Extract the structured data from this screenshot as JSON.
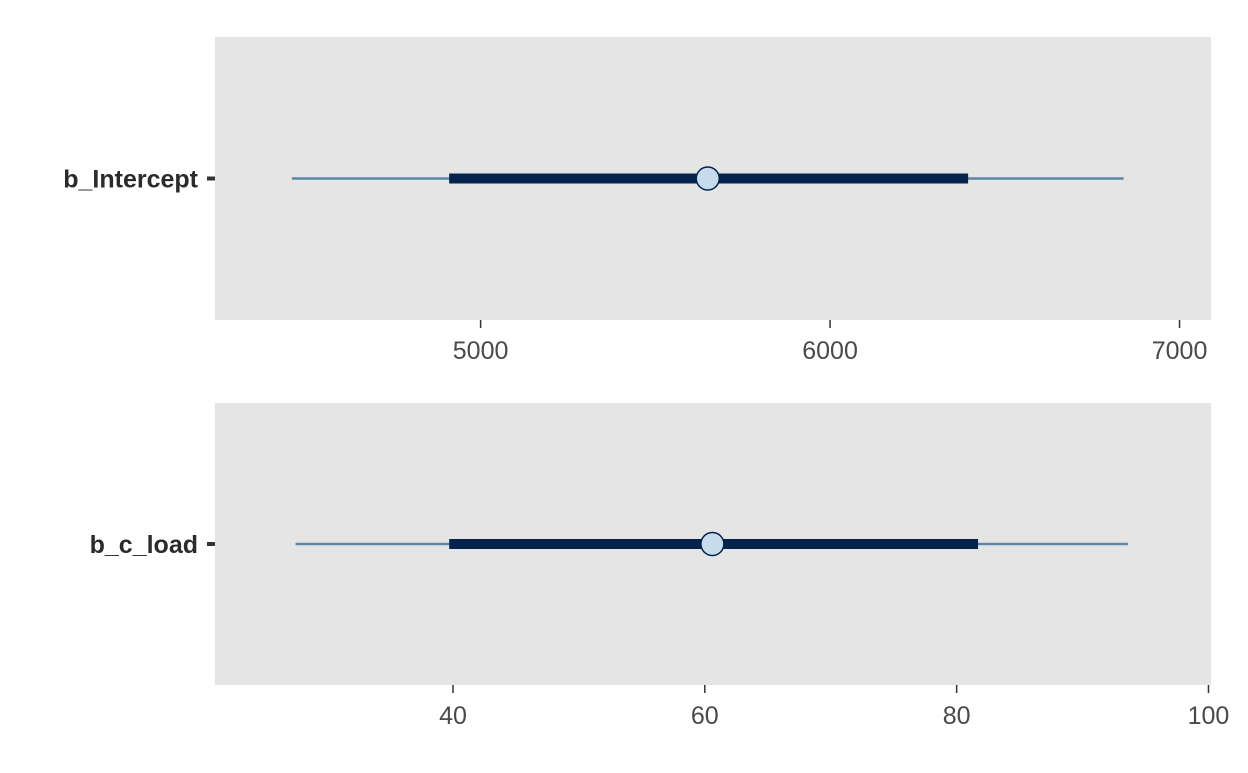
{
  "chart_data": [
    {
      "type": "interval",
      "parameter": "b_Intercept",
      "outer_interval": [
        4460,
        6840
      ],
      "inner_interval": [
        4910,
        6395
      ],
      "point_estimate": 5650,
      "xlim": [
        4240,
        7090
      ],
      "ticks": [
        5000,
        6000,
        7000
      ],
      "tick_labels": [
        "5000",
        "6000",
        "7000"
      ],
      "xlabel": "",
      "ylabel": ""
    },
    {
      "type": "interval",
      "parameter": "b_c_load",
      "outer_interval": [
        27.5,
        93.6
      ],
      "inner_interval": [
        39.7,
        81.7
      ],
      "point_estimate": 60.6,
      "xlim": [
        21.1,
        100.2
      ],
      "ticks": [
        40,
        60,
        80,
        100
      ],
      "tick_labels": [
        "40",
        "60",
        "80",
        "100"
      ],
      "xlabel": "",
      "ylabel": ""
    }
  ],
  "colors": {
    "panel_background": "#e5e5e5",
    "outer_line": "#5b87a7",
    "inner_line": "#03224c",
    "point_fill": "#c6dbec",
    "point_stroke": "#03224c",
    "axis_tick": "#333333"
  }
}
